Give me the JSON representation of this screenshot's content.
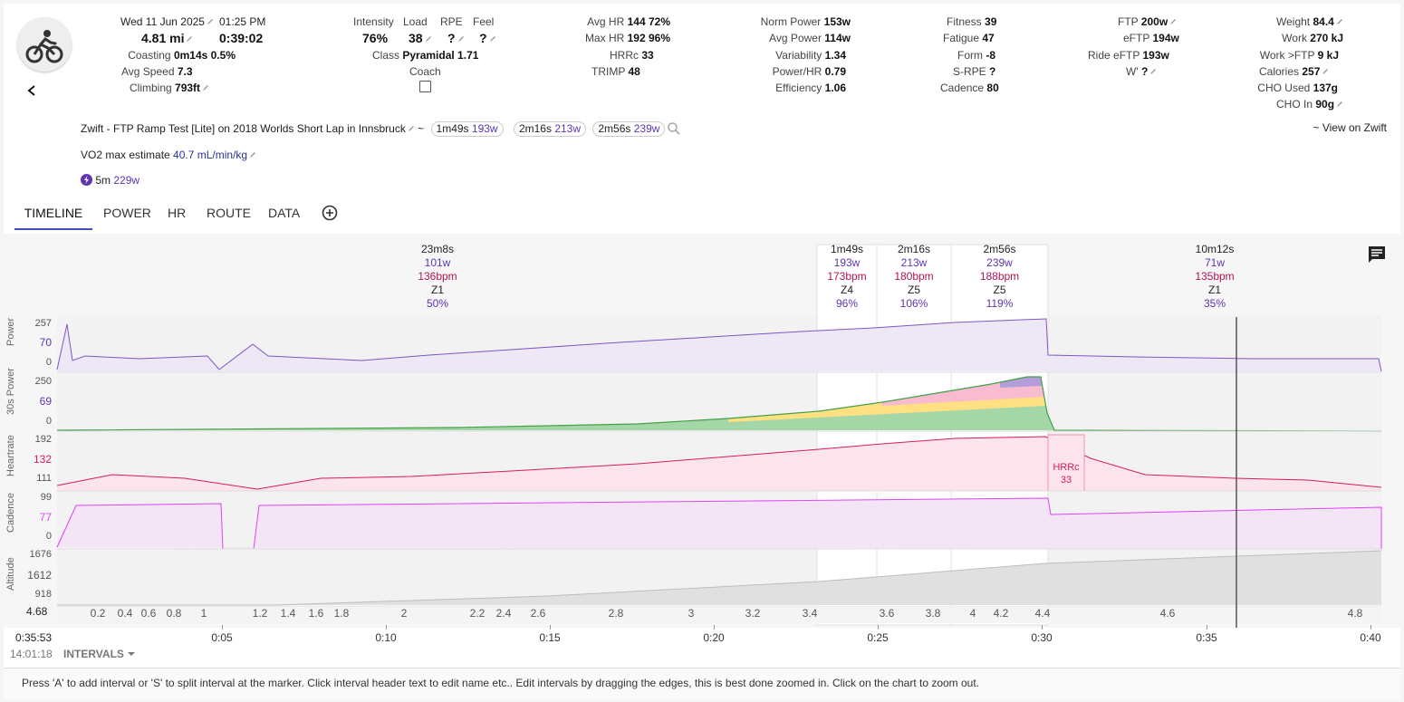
{
  "header": {
    "date": "Wed 11 Jun 2025",
    "time": "01:25 PM",
    "distance": "4.81 mi",
    "duration": "0:39:02",
    "coasting_label": "Coasting",
    "coasting_value": "0m14s 0.5%",
    "avgspeed_label": "Avg Speed",
    "avgspeed_value": "7.3",
    "climbing_label": "Climbing",
    "climbing_value": "793ft",
    "intensity_label": "Intensity",
    "intensity_value": "76%",
    "load_label": "Load",
    "load_value": "38",
    "rpe_label": "RPE",
    "rpe_value": "?",
    "feel_label": "Feel",
    "feel_value": "?",
    "class_label": "Class",
    "class_value": "Pyramidal 1.71",
    "coach_label": "Coach",
    "avghr_label": "Avg HR",
    "avghr_value": "144 72%",
    "maxhr_label": "Max HR",
    "maxhr_value": "192 96%",
    "hrrc_label": "HRRc",
    "hrrc_value": "33",
    "trimp_label": "TRIMP",
    "trimp_value": "48",
    "normpower_label": "Norm Power",
    "normpower_value": "153w",
    "avgpower_label": "Avg Power",
    "avgpower_value": "114w",
    "variability_label": "Variability",
    "variability_value": "1.34",
    "powerhr_label": "Power/HR",
    "powerhr_value": "0.79",
    "efficiency_label": "Efficiency",
    "efficiency_value": "1.06",
    "fitness_label": "Fitness",
    "fitness_value": "39",
    "fatigue_label": "Fatigue",
    "fatigue_value": "47",
    "form_label": "Form",
    "form_value": "-8",
    "srpe_label": "S-RPE",
    "srpe_value": "?",
    "cadence_label": "Cadence",
    "cadence_value": "80",
    "ftp_label": "FTP",
    "ftp_value": "200w",
    "eftp_label": "eFTP",
    "eftp_value": "194w",
    "rideeftp_label": "Ride eFTP",
    "rideeftp_value": "193w",
    "wprime_label": "W'",
    "wprime_value": "?",
    "weight_label": "Weight",
    "weight_value": "84.4",
    "work_label": "Work",
    "work_value": "270 kJ",
    "workftp_label": "Work >FTP",
    "workftp_value": "9 kJ",
    "calories_label": "Calories",
    "calories_value": "257",
    "cho_used_label": "CHO Used",
    "cho_used_value": "137g",
    "cho_in_label": "CHO In",
    "cho_in_value": "90g"
  },
  "activity": {
    "title": "Zwift - FTP Ramp Test [Lite] on 2018 Worlds Short Lap in Innsbruck",
    "tilde": "~",
    "best_efforts": [
      {
        "dur": "1m49s",
        "watts": "193w"
      },
      {
        "dur": "2m16s",
        "watts": "213w"
      },
      {
        "dur": "2m56s",
        "watts": "239w"
      }
    ],
    "view_link": "~ View on Zwift",
    "vo2_label": "VO2 max estimate",
    "vo2_value": "40.7 mL/min/kg",
    "peak_dur": "5m",
    "peak_watts": "229w"
  },
  "tabs": [
    "TIMELINE",
    "POWER",
    "HR",
    "ROUTE",
    "DATA"
  ],
  "intervals_header": [
    {
      "dur": "23m8s",
      "watts": "101w",
      "bpm": "136bpm",
      "zone": "Z1",
      "pct": "50%"
    },
    {
      "dur": "1m49s",
      "watts": "193w",
      "bpm": "173bpm",
      "zone": "Z4",
      "pct": "96%"
    },
    {
      "dur": "2m16s",
      "watts": "213w",
      "bpm": "180bpm",
      "zone": "Z5",
      "pct": "106%"
    },
    {
      "dur": "2m56s",
      "watts": "239w",
      "bpm": "188bpm",
      "zone": "Z5",
      "pct": "119%"
    },
    {
      "dur": "10m12s",
      "watts": "71w",
      "bpm": "135bpm",
      "zone": "Z1",
      "pct": "35%"
    }
  ],
  "charts": {
    "power": {
      "label": "Power",
      "ticks": [
        "257",
        "70",
        "0"
      ]
    },
    "power30": {
      "label": "30s Power",
      "ticks": [
        "250",
        "69",
        "0"
      ]
    },
    "hr": {
      "label": "Heartrate",
      "ticks": [
        "192",
        "132",
        "111"
      ]
    },
    "cadence": {
      "label": "Cadence",
      "ticks": [
        "99",
        "77",
        "0"
      ]
    },
    "altitude": {
      "label": "Altitude",
      "ticks": [
        "1676",
        "1612",
        "918"
      ]
    },
    "hrrc_box": {
      "label": "HRRc",
      "value": "33"
    }
  },
  "distance_row": {
    "start": "4.68",
    "ticks": [
      "0.2",
      "0.4",
      "0.6",
      "0.8",
      "1",
      "1.2",
      "1.4",
      "1.6",
      "1.8",
      "2",
      "2.2",
      "2.4",
      "2.6",
      "2.8",
      "3",
      "3.2",
      "3.4",
      "3.6",
      "3.8",
      "4",
      "4.2",
      "4.4",
      "4.6",
      "4.8"
    ]
  },
  "time_axis": {
    "cursor_time": "0:35:53",
    "clock_time": "14:01:18",
    "ticks": [
      "0:05",
      "0:10",
      "0:15",
      "0:20",
      "0:25",
      "0:30",
      "0:35",
      "0:40"
    ]
  },
  "intervals_toggle": "INTERVALS",
  "footer_text": "Press 'A' to add interval or 'S' to split interval at the marker. Click interval header text to edit name etc.. Edit intervals by dragging the edges, this is best done zoomed in. Click on the chart to zoom out.",
  "colors": {
    "power": "#7e57c2",
    "hr": "#d81b60",
    "cadence": "#e040fb",
    "altitude": "#9e9e9e",
    "accent": "#3f51b5"
  }
}
